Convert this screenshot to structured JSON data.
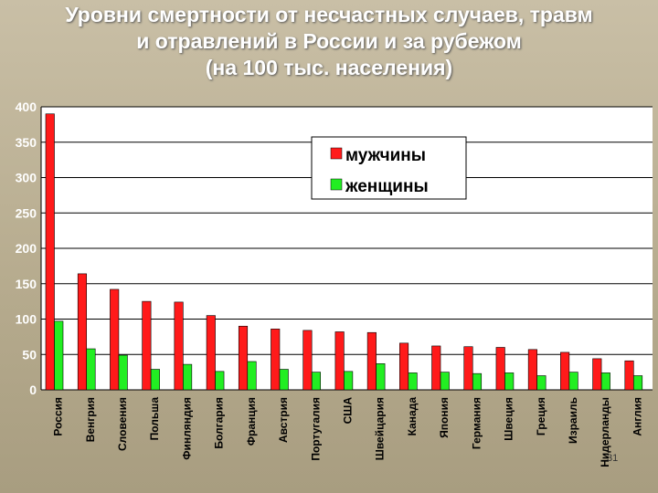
{
  "title": {
    "line1": "Уровни смертности от несчастных случаев, травм",
    "line2": "и отравлений в России и за рубежом",
    "line3": "(на 100 тыс. населения)"
  },
  "slide_number": "31",
  "colors": {
    "men": "#ff1a1a",
    "women": "#22ee22",
    "plot_bg": "#ffffff",
    "grid": "#000000"
  },
  "chart_data": {
    "type": "bar",
    "title": "",
    "xlabel": "",
    "ylabel": "",
    "ylim": [
      0,
      400
    ],
    "yticks": [
      0,
      50,
      100,
      150,
      200,
      250,
      300,
      350,
      400
    ],
    "grid": true,
    "legend_position": "top-right",
    "categories": [
      "Россия",
      "Венгрия",
      "Словения",
      "Польша",
      "Финляндия",
      "Болгария",
      "Франция",
      "Австрия",
      "Португалия",
      "США",
      "Швейцария",
      "Канада",
      "Япония",
      "Германия",
      "Швеция",
      "Греция",
      "Израиль",
      "Нидерланды",
      "Англия"
    ],
    "series": [
      {
        "name": "мужчины",
        "values": [
          390,
          164,
          142,
          125,
          124,
          105,
          90,
          86,
          84,
          82,
          81,
          66,
          62,
          61,
          60,
          57,
          53,
          44,
          41
        ]
      },
      {
        "name": "женщины",
        "values": [
          97,
          58,
          49,
          29,
          36,
          26,
          40,
          29,
          25,
          26,
          37,
          24,
          25,
          23,
          24,
          20,
          25,
          24,
          20
        ]
      }
    ]
  }
}
